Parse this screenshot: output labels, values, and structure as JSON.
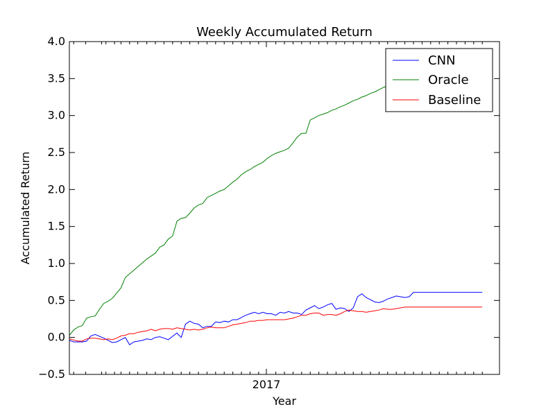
{
  "chart_data": {
    "type": "line",
    "title": "Weekly Accumulated Return",
    "xlabel": "Year",
    "ylabel": "Accumulated Return",
    "xlim": [
      0,
      100
    ],
    "ylim": [
      -0.5,
      4.0
    ],
    "yticks": [
      -0.5,
      0.0,
      0.5,
      1.0,
      1.5,
      2.0,
      2.5,
      3.0,
      3.5,
      4.0
    ],
    "ytick_labels": [
      "−0.5",
      "0.0",
      "0.5",
      "1.0",
      "1.5",
      "2.0",
      "2.5",
      "3.0",
      "3.5",
      "4.0"
    ],
    "major_xtick": {
      "x": 45.8,
      "label": "2017"
    },
    "minor_xticks": [
      1,
      3.8,
      7.5,
      8.5,
      10.5,
      12,
      14,
      15.9,
      18,
      20,
      22,
      24,
      26,
      28,
      30,
      32,
      34,
      36,
      38,
      40,
      42,
      44,
      48,
      50,
      52,
      54,
      56,
      58,
      60,
      62,
      64,
      66,
      68,
      70,
      72,
      74,
      76,
      78,
      80,
      82,
      84,
      86,
      88,
      90,
      92,
      94,
      96
    ],
    "grid": false,
    "legend": "top-right",
    "series": [
      {
        "name": "CNN",
        "color": "#0000ff",
        "x": [
          0,
          1,
          3,
          4,
          5,
          6,
          8,
          10,
          11,
          12,
          13,
          14,
          15,
          16,
          17,
          18,
          19,
          20,
          21,
          22,
          23,
          25,
          26,
          27,
          28,
          29,
          30,
          31,
          32,
          33,
          34,
          35,
          36,
          37,
          38,
          39,
          40,
          41,
          42,
          43,
          44,
          45,
          46,
          47,
          48,
          49,
          50,
          51,
          52,
          53,
          54,
          55,
          56,
          57,
          58,
          59,
          60,
          61,
          62,
          63,
          64,
          65,
          66,
          67,
          68,
          69,
          70,
          71,
          72,
          73,
          74,
          75,
          76,
          77,
          78,
          79,
          80,
          81,
          82,
          83,
          84,
          85,
          86,
          87,
          88,
          89,
          90,
          91,
          92,
          93,
          94,
          95,
          96
        ],
        "y": [
          -0.04,
          -0.06,
          -0.06,
          -0.05,
          0.02,
          0.04,
          -0.01,
          -0.07,
          -0.06,
          -0.03,
          0.0,
          -0.1,
          -0.06,
          -0.05,
          -0.04,
          -0.02,
          -0.03,
          0.0,
          0.01,
          -0.01,
          -0.03,
          0.06,
          0.0,
          0.18,
          0.22,
          0.19,
          0.18,
          0.13,
          0.15,
          0.15,
          0.21,
          0.2,
          0.22,
          0.21,
          0.24,
          0.24,
          0.27,
          0.3,
          0.32,
          0.34,
          0.32,
          0.34,
          0.32,
          0.32,
          0.3,
          0.34,
          0.33,
          0.35,
          0.33,
          0.33,
          0.31,
          0.37,
          0.4,
          0.43,
          0.39,
          0.41,
          0.44,
          0.46,
          0.38,
          0.4,
          0.39,
          0.35,
          0.4,
          0.55,
          0.59,
          0.54,
          0.51,
          0.48,
          0.47,
          0.49,
          0.52,
          0.54,
          0.56,
          0.55,
          0.54,
          0.55,
          0.61,
          0.61,
          0.61,
          0.61,
          0.61,
          0.61,
          0.61,
          0.61,
          0.61,
          0.61,
          0.61,
          0.61,
          0.61,
          0.61,
          0.61,
          0.61,
          0.61
        ]
      },
      {
        "name": "Oracle",
        "color": "#008000",
        "x": [
          0,
          1,
          2,
          3,
          4,
          5,
          6,
          7,
          8,
          9,
          10,
          11,
          12,
          13,
          14,
          15,
          16,
          17,
          18,
          19,
          20,
          21,
          22,
          23,
          24,
          25,
          26,
          27,
          28,
          29,
          30,
          31,
          32,
          33,
          34,
          35,
          36,
          37,
          38,
          39,
          40,
          41,
          42,
          43,
          44,
          45,
          46,
          47,
          48,
          49,
          50,
          51,
          52,
          53,
          54,
          55,
          56,
          57,
          58,
          59,
          60,
          61,
          62,
          63,
          64,
          65,
          66,
          67,
          68,
          69,
          70,
          71,
          72,
          73,
          74,
          75,
          76,
          77,
          78,
          79,
          80,
          81,
          82,
          83,
          84,
          85,
          86,
          87,
          88,
          89,
          90,
          91,
          92,
          93,
          94,
          95,
          96
        ],
        "y": [
          0.03,
          0.1,
          0.14,
          0.16,
          0.26,
          0.28,
          0.29,
          0.38,
          0.46,
          0.49,
          0.53,
          0.6,
          0.67,
          0.81,
          0.86,
          0.91,
          0.96,
          1.01,
          1.06,
          1.1,
          1.14,
          1.22,
          1.25,
          1.33,
          1.37,
          1.57,
          1.61,
          1.62,
          1.68,
          1.75,
          1.79,
          1.81,
          1.89,
          1.92,
          1.95,
          1.98,
          2.0,
          2.05,
          2.1,
          2.14,
          2.2,
          2.24,
          2.27,
          2.31,
          2.34,
          2.37,
          2.42,
          2.46,
          2.49,
          2.51,
          2.53,
          2.56,
          2.63,
          2.71,
          2.76,
          2.76,
          2.94,
          2.97,
          3.0,
          3.02,
          3.04,
          3.07,
          3.09,
          3.12,
          3.14,
          3.17,
          3.2,
          3.22,
          3.25,
          3.27,
          3.3,
          3.32,
          3.35,
          3.38,
          3.4,
          3.43,
          3.45,
          3.48,
          3.5,
          3.52,
          3.55,
          3.57,
          3.6,
          3.62,
          3.65,
          3.67,
          3.7,
          3.72,
          3.74,
          3.76,
          3.78,
          3.8,
          3.82,
          3.84,
          3.86,
          3.88,
          3.9
        ]
      },
      {
        "name": "Baseline",
        "color": "#ff0000",
        "x": [
          0,
          2,
          3,
          4,
          5,
          6,
          8,
          9,
          10,
          11,
          12,
          13,
          14,
          15,
          16,
          17,
          18,
          19,
          20,
          21,
          22,
          23,
          24,
          25,
          26,
          27,
          28,
          29,
          30,
          31,
          32,
          33,
          34,
          35,
          36,
          37,
          38,
          39,
          40,
          41,
          42,
          43,
          44,
          45,
          46,
          47,
          48,
          49,
          50,
          51,
          52,
          53,
          54,
          55,
          56,
          57,
          58,
          59,
          60,
          61,
          62,
          63,
          64,
          65,
          66,
          67,
          68,
          69,
          70,
          71,
          72,
          73,
          74,
          75,
          76,
          77,
          78,
          79,
          80,
          81,
          82,
          83,
          84,
          85,
          86,
          87,
          88,
          89,
          90,
          91,
          92,
          93,
          94,
          95,
          96
        ],
        "y": [
          -0.02,
          -0.05,
          -0.05,
          -0.02,
          -0.01,
          -0.01,
          -0.03,
          -0.02,
          -0.03,
          -0.01,
          0.02,
          0.03,
          0.05,
          0.05,
          0.07,
          0.08,
          0.09,
          0.11,
          0.09,
          0.11,
          0.12,
          0.12,
          0.11,
          0.13,
          0.12,
          0.11,
          0.1,
          0.11,
          0.1,
          0.11,
          0.13,
          0.14,
          0.13,
          0.13,
          0.13,
          0.15,
          0.17,
          0.18,
          0.19,
          0.2,
          0.22,
          0.22,
          0.23,
          0.23,
          0.24,
          0.24,
          0.24,
          0.24,
          0.24,
          0.25,
          0.26,
          0.28,
          0.3,
          0.3,
          0.32,
          0.33,
          0.33,
          0.3,
          0.31,
          0.31,
          0.3,
          0.32,
          0.35,
          0.37,
          0.36,
          0.35,
          0.35,
          0.34,
          0.35,
          0.36,
          0.37,
          0.39,
          0.38,
          0.38,
          0.39,
          0.4,
          0.41,
          0.41,
          0.41,
          0.41,
          0.41,
          0.41,
          0.41,
          0.41,
          0.41,
          0.41,
          0.41,
          0.41,
          0.41,
          0.41,
          0.41,
          0.41,
          0.41,
          0.41,
          0.41
        ]
      }
    ]
  }
}
